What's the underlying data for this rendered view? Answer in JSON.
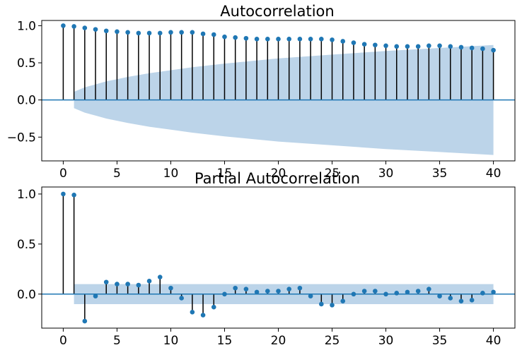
{
  "colors": {
    "marker": "#1f77b4",
    "stem": "#000000",
    "band": "#bcd4e9",
    "zero_line": "#1f77b4",
    "axes": "#000000"
  },
  "chart_data": [
    {
      "type": "stem",
      "title": "Autocorrelation",
      "xlabel": "",
      "ylabel": "",
      "xlim": [
        -2,
        42
      ],
      "ylim": [
        -0.82,
        1.07
      ],
      "xticks": [
        0,
        5,
        10,
        15,
        20,
        25,
        30,
        35,
        40
      ],
      "yticks": [
        -0.5,
        0.0,
        0.5,
        1.0
      ],
      "ytick_labels": [
        "−0.5",
        "0.0",
        "0.5",
        "1.0"
      ],
      "confidence_band": {
        "x": [
          1,
          2,
          3,
          4,
          5,
          6,
          8,
          10,
          12,
          15,
          20,
          25,
          30,
          35,
          40
        ],
        "upper": [
          0.11,
          0.17,
          0.21,
          0.25,
          0.28,
          0.31,
          0.36,
          0.4,
          0.44,
          0.49,
          0.56,
          0.61,
          0.66,
          0.7,
          0.74
        ],
        "lower": [
          -0.11,
          -0.17,
          -0.21,
          -0.25,
          -0.28,
          -0.31,
          -0.36,
          -0.4,
          -0.44,
          -0.49,
          -0.56,
          -0.61,
          -0.66,
          -0.7,
          -0.74
        ]
      },
      "series": [
        {
          "x": [
            0,
            1,
            2,
            3,
            4,
            5,
            6,
            7,
            8,
            9,
            10,
            11,
            12,
            13,
            14,
            15,
            16,
            17,
            18,
            19,
            20,
            21,
            22,
            23,
            24,
            25,
            26,
            27,
            28,
            29,
            30,
            31,
            32,
            33,
            34,
            35,
            36,
            37,
            38,
            39,
            40
          ],
          "values": [
            1.0,
            0.99,
            0.97,
            0.95,
            0.93,
            0.92,
            0.91,
            0.9,
            0.9,
            0.9,
            0.91,
            0.91,
            0.91,
            0.89,
            0.88,
            0.85,
            0.84,
            0.83,
            0.82,
            0.82,
            0.82,
            0.82,
            0.82,
            0.82,
            0.82,
            0.81,
            0.79,
            0.77,
            0.75,
            0.74,
            0.73,
            0.72,
            0.72,
            0.72,
            0.73,
            0.73,
            0.72,
            0.71,
            0.7,
            0.69,
            0.67
          ]
        }
      ]
    },
    {
      "type": "stem",
      "title": "Partial Autocorrelation",
      "xlabel": "",
      "ylabel": "",
      "xlim": [
        -2,
        42
      ],
      "ylim": [
        -0.34,
        1.07
      ],
      "xticks": [
        0,
        5,
        10,
        15,
        20,
        25,
        30,
        35,
        40
      ],
      "yticks": [
        0.0,
        0.5,
        1.0
      ],
      "ytick_labels": [
        "0.0",
        "0.5",
        "1.0"
      ],
      "confidence_band": {
        "x": [
          1,
          40
        ],
        "upper": [
          0.1,
          0.1
        ],
        "lower": [
          -0.1,
          -0.1
        ]
      },
      "series": [
        {
          "x": [
            0,
            1,
            2,
            3,
            4,
            5,
            6,
            7,
            8,
            9,
            10,
            11,
            12,
            13,
            14,
            15,
            16,
            17,
            18,
            19,
            20,
            21,
            22,
            23,
            24,
            25,
            26,
            27,
            28,
            29,
            30,
            31,
            32,
            33,
            34,
            35,
            36,
            37,
            38,
            39,
            40
          ],
          "values": [
            1.0,
            0.99,
            -0.27,
            -0.02,
            0.12,
            0.1,
            0.1,
            0.09,
            0.13,
            0.17,
            0.06,
            -0.04,
            -0.18,
            -0.21,
            -0.13,
            0.0,
            0.06,
            0.05,
            0.02,
            0.03,
            0.03,
            0.05,
            0.06,
            -0.02,
            -0.1,
            -0.11,
            -0.07,
            0.0,
            0.03,
            0.03,
            0.0,
            0.01,
            0.02,
            0.03,
            0.05,
            -0.02,
            -0.04,
            -0.07,
            -0.06,
            0.01,
            0.02
          ]
        }
      ]
    }
  ]
}
